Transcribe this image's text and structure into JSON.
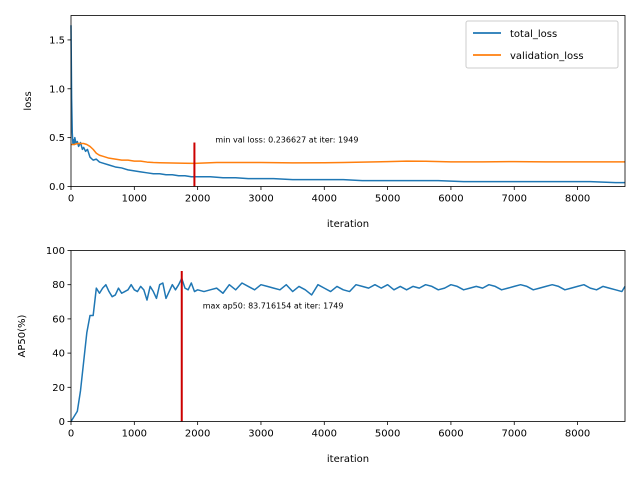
{
  "chart_data": [
    {
      "type": "line",
      "xlabel": "iteration",
      "ylabel": "loss",
      "xlim": [
        0,
        8749
      ],
      "ylim": [
        0,
        1.75
      ],
      "xticks": [
        0,
        1000,
        2000,
        3000,
        4000,
        5000,
        6000,
        7000,
        8000
      ],
      "yticks": [
        0.0,
        0.5,
        1.0,
        1.5
      ],
      "xtick_labels": [
        "0",
        "1000",
        "2000",
        "3000",
        "4000",
        "5000",
        "6000",
        "7000",
        "8000"
      ],
      "ytick_labels": [
        "0.0",
        "0.5",
        "1.0",
        "1.5"
      ],
      "legend_position": "upper-right",
      "legend": [
        "total_loss",
        "validation_loss"
      ],
      "series": [
        {
          "name": "total_loss",
          "color": "#1f77b4",
          "x": [
            0,
            10,
            20,
            30,
            40,
            50,
            60,
            80,
            100,
            120,
            150,
            180,
            200,
            230,
            260,
            300,
            350,
            400,
            450,
            500,
            600,
            700,
            800,
            900,
            1000,
            1100,
            1200,
            1300,
            1400,
            1500,
            1600,
            1700,
            1800,
            1900,
            2000,
            2200,
            2400,
            2600,
            2800,
            3000,
            3200,
            3500,
            3800,
            4000,
            4300,
            4600,
            5000,
            5400,
            5800,
            6200,
            6600,
            7000,
            7400,
            7800,
            8200,
            8600,
            8749
          ],
          "y": [
            1.65,
            0.9,
            0.55,
            0.44,
            0.48,
            0.43,
            0.5,
            0.44,
            0.46,
            0.41,
            0.45,
            0.38,
            0.4,
            0.36,
            0.38,
            0.3,
            0.27,
            0.28,
            0.25,
            0.24,
            0.22,
            0.2,
            0.19,
            0.17,
            0.16,
            0.15,
            0.14,
            0.13,
            0.13,
            0.12,
            0.12,
            0.11,
            0.11,
            0.1,
            0.1,
            0.1,
            0.09,
            0.09,
            0.08,
            0.08,
            0.08,
            0.07,
            0.07,
            0.07,
            0.07,
            0.06,
            0.06,
            0.06,
            0.06,
            0.05,
            0.05,
            0.05,
            0.05,
            0.05,
            0.05,
            0.04,
            0.04
          ]
        },
        {
          "name": "validation_loss",
          "color": "#ff7f0e",
          "x": [
            0,
            50,
            100,
            150,
            200,
            250,
            300,
            350,
            400,
            450,
            500,
            600,
            700,
            800,
            900,
            1000,
            1100,
            1200,
            1300,
            1400,
            1500,
            1600,
            1700,
            1800,
            1949,
            2100,
            2300,
            2600,
            3000,
            3500,
            4000,
            4300,
            4600,
            5000,
            5300,
            5600,
            6000,
            6500,
            7000,
            7500,
            8000,
            8500,
            8749
          ],
          "y": [
            0.43,
            0.43,
            0.44,
            0.44,
            0.44,
            0.43,
            0.41,
            0.38,
            0.34,
            0.32,
            0.31,
            0.29,
            0.28,
            0.27,
            0.27,
            0.26,
            0.26,
            0.25,
            0.245,
            0.243,
            0.242,
            0.24,
            0.239,
            0.238,
            0.237,
            0.24,
            0.245,
            0.245,
            0.245,
            0.242,
            0.243,
            0.245,
            0.25,
            0.255,
            0.26,
            0.258,
            0.252,
            0.252,
            0.255,
            0.252,
            0.252,
            0.252,
            0.252
          ]
        }
      ],
      "marker_line": {
        "x": 1949,
        "y_range": [
          0,
          0.45
        ],
        "color": "#cc0000"
      },
      "annotation": {
        "text": "min val loss: 0.236627 at iter: 1949",
        "x": 2280,
        "y": 0.45
      }
    },
    {
      "type": "line",
      "xlabel": "iteration",
      "ylabel": "AP50(%)",
      "xlim": [
        0,
        8749
      ],
      "ylim": [
        0,
        100
      ],
      "xticks": [
        0,
        1000,
        2000,
        3000,
        4000,
        5000,
        6000,
        7000,
        8000
      ],
      "yticks": [
        0,
        20,
        40,
        60,
        80,
        100
      ],
      "xtick_labels": [
        "0",
        "1000",
        "2000",
        "3000",
        "4000",
        "5000",
        "6000",
        "7000",
        "8000"
      ],
      "ytick_labels": [
        "0",
        "20",
        "40",
        "60",
        "80",
        "100"
      ],
      "series": [
        {
          "color": "#1f77b4",
          "x": [
            0,
            50,
            100,
            150,
            200,
            250,
            300,
            350,
            400,
            450,
            500,
            550,
            600,
            650,
            700,
            750,
            800,
            850,
            900,
            950,
            1000,
            1050,
            1100,
            1150,
            1200,
            1250,
            1300,
            1350,
            1400,
            1450,
            1500,
            1550,
            1600,
            1650,
            1700,
            1749,
            1800,
            1850,
            1900,
            1950,
            2000,
            2100,
            2200,
            2300,
            2400,
            2500,
            2600,
            2700,
            2800,
            2900,
            3000,
            3100,
            3200,
            3300,
            3400,
            3500,
            3600,
            3700,
            3800,
            3900,
            4000,
            4100,
            4200,
            4300,
            4400,
            4500,
            4600,
            4700,
            4800,
            4900,
            5000,
            5100,
            5200,
            5300,
            5400,
            5500,
            5600,
            5700,
            5800,
            5900,
            6000,
            6100,
            6200,
            6300,
            6400,
            6500,
            6600,
            6700,
            6800,
            6900,
            7000,
            7100,
            7200,
            7300,
            7400,
            7500,
            7600,
            7700,
            7800,
            7900,
            8000,
            8100,
            8200,
            8300,
            8400,
            8500,
            8600,
            8700,
            8749
          ],
          "y": [
            0,
            3,
            6,
            18,
            35,
            52,
            62,
            62,
            78,
            75,
            78,
            80,
            76,
            73,
            74,
            78,
            75,
            76,
            77,
            80,
            77,
            76,
            79,
            77,
            71,
            79,
            76,
            72,
            80,
            81,
            72,
            76,
            80,
            77,
            80,
            83.7,
            78,
            77,
            81,
            76,
            77,
            76,
            77,
            78,
            75,
            80,
            77,
            81,
            79,
            77,
            80,
            79,
            78,
            77,
            80,
            76,
            79,
            77,
            74,
            80,
            78,
            76,
            79,
            77,
            76,
            80,
            79,
            78,
            80,
            78,
            80,
            77,
            79,
            77,
            79,
            78,
            80,
            79,
            77,
            78,
            80,
            79,
            77,
            78,
            79,
            78,
            80,
            79,
            77,
            78,
            79,
            80,
            79,
            77,
            78,
            79,
            80,
            79,
            77,
            78,
            79,
            80,
            78,
            77,
            79,
            78,
            77,
            76,
            79
          ]
        }
      ],
      "marker_line": {
        "x": 1749,
        "y_range": [
          0,
          88
        ],
        "color": "#cc0000"
      },
      "annotation": {
        "text": "max ap50: 83.716154 at iter: 1749",
        "x": 2080,
        "y": 66
      }
    }
  ]
}
